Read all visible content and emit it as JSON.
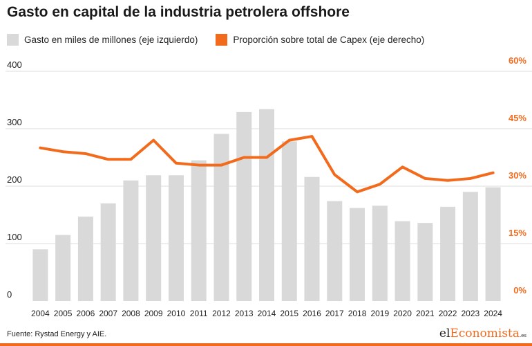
{
  "title": "Gasto en capital de la industria petrolera offshore",
  "legend": {
    "bar": "Gasto en miles de millones (eje izquierdo)",
    "line": "Proporción sobre total de Capex (eje derecho)"
  },
  "colors": {
    "bar": "#d9d9d9",
    "line": "#f26b1d",
    "grid": "#dcdcdc",
    "right_axis_text": "#f26b1d"
  },
  "source": "Fuente: Rystad Energy y AIE.",
  "brand": {
    "part1": "el",
    "part2": "Economista",
    "tld": ".es"
  },
  "chart_data": {
    "type": "bar+line",
    "title": "Gasto en capital de la industria petrolera offshore",
    "categories": [
      "2004",
      "2005",
      "2006",
      "2007",
      "2008",
      "2009",
      "2010",
      "2011",
      "2012",
      "2013",
      "2014",
      "2015",
      "2016",
      "2017",
      "2018",
      "2019",
      "2020",
      "2021",
      "2022",
      "2023",
      "2024"
    ],
    "series": [
      {
        "name": "Gasto en miles de millones (eje izquierdo)",
        "type": "bar",
        "axis": "left",
        "values": [
          90,
          115,
          147,
          170,
          210,
          219,
          219,
          245,
          291,
          329,
          334,
          278,
          216,
          174,
          162,
          166,
          139,
          136,
          164,
          190,
          198
        ]
      },
      {
        "name": "Proporción sobre total de Capex (eje derecho)",
        "type": "line",
        "axis": "right",
        "values": [
          40,
          39,
          38.5,
          37,
          37,
          42,
          36,
          35.5,
          35.5,
          37.5,
          37.5,
          42,
          43,
          33,
          28.5,
          30.5,
          35,
          32,
          31.5,
          32,
          33.5
        ]
      }
    ],
    "left_axis": {
      "ylim": [
        0,
        400
      ],
      "ticks": [
        "0",
        "100",
        "200",
        "300",
        "400"
      ]
    },
    "right_axis": {
      "ylim": [
        0,
        60
      ],
      "ticks": [
        "0%",
        "15%",
        "30%",
        "45%",
        "60%"
      ]
    },
    "grid": true,
    "legend_position": "top-left"
  }
}
